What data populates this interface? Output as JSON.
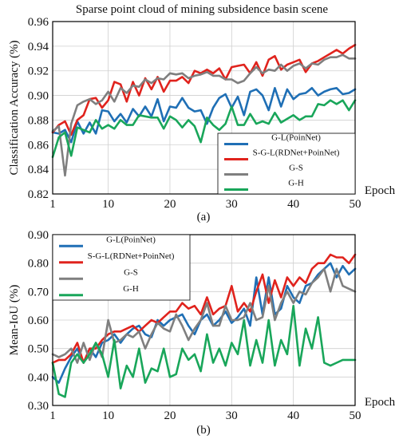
{
  "chart_data": [
    {
      "type": "line",
      "title": "Sparse point cloud of mining subsidence basin scene",
      "subtitle": "(a)",
      "xlabel": "Epoch",
      "ylabel": "Classification Accuracy (%)",
      "xlim": [
        1,
        50
      ],
      "ylim": [
        0.82,
        0.96
      ],
      "xticks": [
        "1",
        "10",
        "20",
        "30",
        "40",
        "50"
      ],
      "yticks": [
        "0.82",
        "0.84",
        "0.86",
        "0.88",
        "0.90",
        "0.92",
        "0.94",
        "0.96"
      ],
      "grid": true,
      "legend_position": "bottom-right",
      "series": [
        {
          "name": "G-L(PoinNet)",
          "color": "#1f6fb5",
          "values": [
            0.87,
            0.869,
            0.872,
            0.862,
            0.879,
            0.869,
            0.878,
            0.869,
            0.888,
            0.887,
            0.879,
            0.885,
            0.878,
            0.889,
            0.883,
            0.891,
            0.883,
            0.897,
            0.879,
            0.891,
            0.89,
            0.898,
            0.89,
            0.887,
            0.888,
            0.877,
            0.89,
            0.898,
            0.901,
            0.89,
            0.899,
            0.884,
            0.903,
            0.905,
            0.9,
            0.888,
            0.906,
            0.891,
            0.905,
            0.897,
            0.901,
            0.902,
            0.906,
            0.9,
            0.903,
            0.905,
            0.906,
            0.901,
            0.902,
            0.905
          ]
        },
        {
          "name": "S-G-L(RDNet+PoinNet)",
          "color": "#e0231d",
          "values": [
            0.87,
            0.876,
            0.879,
            0.868,
            0.88,
            0.884,
            0.897,
            0.898,
            0.89,
            0.896,
            0.911,
            0.909,
            0.895,
            0.911,
            0.9,
            0.914,
            0.905,
            0.915,
            0.903,
            0.912,
            0.912,
            0.915,
            0.91,
            0.92,
            0.918,
            0.921,
            0.918,
            0.922,
            0.913,
            0.923,
            0.924,
            0.925,
            0.918,
            0.927,
            0.916,
            0.929,
            0.932,
            0.921,
            0.925,
            0.927,
            0.929,
            0.919,
            0.926,
            0.928,
            0.931,
            0.934,
            0.937,
            0.934,
            0.938,
            0.941
          ]
        },
        {
          "name": "G-S",
          "color": "#7f7f7f",
          "values": [
            0.871,
            0.875,
            0.835,
            0.877,
            0.892,
            0.895,
            0.897,
            0.893,
            0.896,
            0.903,
            0.895,
            0.906,
            0.902,
            0.908,
            0.907,
            0.913,
            0.91,
            0.914,
            0.913,
            0.918,
            0.917,
            0.918,
            0.914,
            0.916,
            0.917,
            0.919,
            0.916,
            0.916,
            0.913,
            0.913,
            0.91,
            0.912,
            0.918,
            0.923,
            0.918,
            0.921,
            0.92,
            0.925,
            0.92,
            0.924,
            0.926,
            0.922,
            0.926,
            0.925,
            0.929,
            0.931,
            0.931,
            0.933,
            0.93,
            0.93
          ]
        },
        {
          "name": "G-H",
          "color": "#19a65a",
          "values": [
            0.85,
            0.866,
            0.87,
            0.851,
            0.874,
            0.872,
            0.87,
            0.88,
            0.873,
            0.876,
            0.873,
            0.88,
            0.876,
            0.876,
            0.884,
            0.883,
            0.882,
            0.882,
            0.873,
            0.883,
            0.88,
            0.874,
            0.88,
            0.875,
            0.862,
            0.882,
            0.876,
            0.872,
            0.877,
            0.891,
            0.876,
            0.876,
            0.885,
            0.877,
            0.879,
            0.877,
            0.886,
            0.878,
            0.881,
            0.884,
            0.88,
            0.883,
            0.883,
            0.893,
            0.892,
            0.896,
            0.893,
            0.896,
            0.888,
            0.896
          ]
        }
      ]
    },
    {
      "type": "line",
      "subtitle": "(b)",
      "xlabel": "Epoch",
      "ylabel": "Mean-IoU (%)",
      "xlim": [
        1,
        50
      ],
      "ylim": [
        0.3,
        0.9
      ],
      "xticks": [
        "1",
        "10",
        "20",
        "30",
        "40",
        "50"
      ],
      "yticks": [
        "0.30",
        "0.40",
        "0.50",
        "0.60",
        "0.70",
        "0.80",
        "0.90"
      ],
      "grid": true,
      "legend_position": "top-left",
      "series": [
        {
          "name": "G-L(PoinNet)",
          "color": "#1f6fb5",
          "values": [
            0.4,
            0.38,
            0.43,
            0.47,
            0.5,
            0.45,
            0.5,
            0.47,
            0.52,
            0.53,
            0.55,
            0.52,
            0.55,
            0.57,
            0.58,
            0.55,
            0.54,
            0.6,
            0.58,
            0.6,
            0.61,
            0.62,
            0.58,
            0.55,
            0.6,
            0.62,
            0.58,
            0.6,
            0.63,
            0.59,
            0.61,
            0.64,
            0.58,
            0.75,
            0.62,
            0.75,
            0.62,
            0.64,
            0.72,
            0.68,
            0.66,
            0.72,
            0.73,
            0.76,
            0.78,
            0.8,
            0.75,
            0.79,
            0.76,
            0.78
          ]
        },
        {
          "name": "S-G-L(RDNet+PoinNet)",
          "color": "#e0231d",
          "values": [
            0.45,
            0.46,
            0.46,
            0.48,
            0.52,
            0.45,
            0.5,
            0.5,
            0.53,
            0.55,
            0.56,
            0.56,
            0.57,
            0.58,
            0.56,
            0.58,
            0.6,
            0.59,
            0.61,
            0.63,
            0.63,
            0.66,
            0.64,
            0.65,
            0.62,
            0.68,
            0.62,
            0.64,
            0.65,
            0.72,
            0.63,
            0.66,
            0.63,
            0.7,
            0.76,
            0.66,
            0.74,
            0.68,
            0.75,
            0.72,
            0.75,
            0.73,
            0.78,
            0.8,
            0.8,
            0.83,
            0.82,
            0.82,
            0.8,
            0.83
          ]
        },
        {
          "name": "G-S",
          "color": "#7f7f7f",
          "values": [
            0.48,
            0.47,
            0.48,
            0.5,
            0.45,
            0.52,
            0.46,
            0.52,
            0.47,
            0.6,
            0.52,
            0.53,
            0.55,
            0.54,
            0.56,
            0.5,
            0.55,
            0.59,
            0.57,
            0.56,
            0.62,
            0.58,
            0.53,
            0.57,
            0.6,
            0.66,
            0.58,
            0.58,
            0.65,
            0.6,
            0.6,
            0.61,
            0.66,
            0.6,
            0.61,
            0.72,
            0.6,
            0.66,
            0.7,
            0.66,
            0.7,
            0.69,
            0.73,
            0.75,
            0.78,
            0.7,
            0.78,
            0.72,
            0.71,
            0.7
          ]
        },
        {
          "name": "G-H",
          "color": "#19a65a",
          "values": [
            0.45,
            0.34,
            0.33,
            0.45,
            0.48,
            0.45,
            0.48,
            0.52,
            0.48,
            0.4,
            0.53,
            0.36,
            0.44,
            0.4,
            0.5,
            0.38,
            0.43,
            0.42,
            0.5,
            0.4,
            0.41,
            0.5,
            0.46,
            0.48,
            0.42,
            0.55,
            0.45,
            0.5,
            0.44,
            0.52,
            0.48,
            0.6,
            0.44,
            0.53,
            0.45,
            0.6,
            0.44,
            0.53,
            0.48,
            0.65,
            0.44,
            0.57,
            0.5,
            0.61,
            0.45,
            0.44,
            0.45,
            0.46,
            0.46,
            0.46
          ]
        }
      ]
    }
  ]
}
